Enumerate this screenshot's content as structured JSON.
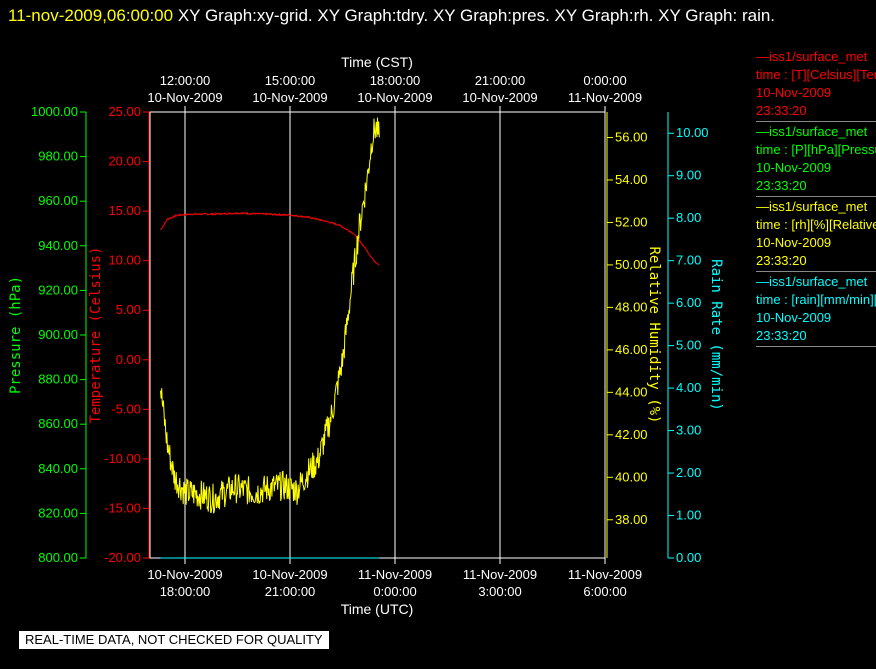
{
  "header": {
    "date_time": "11-nov-2009,06:00:00",
    "graphs": "XY Graph:xy-grid.  XY Graph:tdry.  XY Graph:pres.  XY Graph:rh.  XY Graph: rain."
  },
  "disclaimer": "REAL-TIME DATA, NOT CHECKED FOR QUALITY",
  "legend": [
    {
      "name": "—iss1/surface_met",
      "units": "time : [T][Celsius][Temperature]",
      "date": "10-Nov-2009",
      "time": "23:33:20",
      "color": "#ff0000"
    },
    {
      "name": "—iss1/surface_met",
      "units": "time : [P][hPa][Pressure]",
      "date": "10-Nov-2009",
      "time": "23:33:20",
      "color": "#00ff00"
    },
    {
      "name": "—iss1/surface_met",
      "units": "time : [rh][%][Relative Humidity]",
      "date": "10-Nov-2009",
      "time": "23:33:20",
      "color": "#ffff00"
    },
    {
      "name": "—iss1/surface_met",
      "units": "time : [rain][mm/min][Rain Rate]",
      "date": "10-Nov-2009",
      "time": "23:33:20",
      "color": "#00ffff"
    }
  ],
  "chart_data": {
    "type": "line",
    "x_top_label": "Time (CST)",
    "x_bottom_label": "Time (UTC)",
    "x_range_utc_hours": [
      17,
      30
    ],
    "x_ticks_utc": [
      {
        "h": 18,
        "date": "10-Nov-2009",
        "time": "18:00:00"
      },
      {
        "h": 21,
        "date": "10-Nov-2009",
        "time": "21:00:00"
      },
      {
        "h": 24,
        "date": "11-Nov-2009",
        "time": "0:00:00"
      },
      {
        "h": 27,
        "date": "11-Nov-2009",
        "time": "3:00:00"
      },
      {
        "h": 30,
        "date": "11-Nov-2009",
        "time": "6:00:00"
      }
    ],
    "x_ticks_cst": [
      {
        "h": 18,
        "date": "10-Nov-2009",
        "time": "12:00:00"
      },
      {
        "h": 21,
        "date": "10-Nov-2009",
        "time": "15:00:00"
      },
      {
        "h": 24,
        "date": "10-Nov-2009",
        "time": "18:00:00"
      },
      {
        "h": 27,
        "date": "10-Nov-2009",
        "time": "21:00:00"
      },
      {
        "h": 30,
        "date": "11-Nov-2009",
        "time": "0:00:00"
      }
    ],
    "axes": {
      "pressure": {
        "label": "Pressure (hPa)",
        "color": "#00ff00",
        "range": [
          800,
          1000
        ],
        "ticks": [
          "800.00",
          "820.00",
          "840.00",
          "860.00",
          "880.00",
          "900.00",
          "920.00",
          "940.00",
          "960.00",
          "980.00",
          "1000.00"
        ]
      },
      "temperature": {
        "label": "Temperature (Celsius)",
        "color": "#ff0000",
        "range": [
          -20,
          25
        ],
        "ticks": [
          "-20.00",
          "-15.00",
          "-10.00",
          "-5.00",
          "0.00",
          "5.00",
          "10.00",
          "15.00",
          "20.00",
          "25.00"
        ]
      },
      "rh": {
        "label": "Relative Humidity (%)",
        "color": "#ffff00",
        "range": [
          36.2,
          57.2
        ],
        "ticks": [
          "38.00",
          "40.00",
          "42.00",
          "44.00",
          "46.00",
          "48.00",
          "50.00",
          "52.00",
          "54.00",
          "56.00"
        ]
      },
      "rain": {
        "label": "Rain Rate (mm/min)",
        "color": "#00ffff",
        "range": [
          0,
          10.5
        ],
        "ticks": [
          "0.00",
          "1.00",
          "2.00",
          "3.00",
          "4.00",
          "5.00",
          "6.00",
          "7.00",
          "8.00",
          "9.00",
          "10.00"
        ]
      }
    },
    "series": [
      {
        "name": "Temperature",
        "axis": "temperature",
        "color": "#ff0000",
        "noise": 0.08,
        "x": [
          17.3,
          17.5,
          17.8,
          18.2,
          18.8,
          19.5,
          20.3,
          21.0,
          21.5,
          22.0,
          22.4,
          22.8,
          23.1,
          23.4,
          23.55
        ],
        "y": [
          13.1,
          14.2,
          14.6,
          14.7,
          14.7,
          14.8,
          14.7,
          14.6,
          14.4,
          14.0,
          13.6,
          12.8,
          11.5,
          10.0,
          9.6
        ]
      },
      {
        "name": "Relative Humidity",
        "axis": "rh",
        "color": "#ffff00",
        "noise": 0.7,
        "x": [
          17.3,
          17.5,
          17.7,
          18.0,
          18.4,
          18.8,
          19.4,
          20.0,
          20.4,
          20.8,
          21.2,
          21.5,
          21.8,
          22.2,
          22.5,
          22.8,
          23.0,
          23.2,
          23.35,
          23.45,
          23.55
        ],
        "y": [
          44.2,
          41.5,
          40.0,
          39.3,
          39.2,
          39.0,
          39.5,
          39.3,
          39.5,
          39.6,
          39.4,
          40.2,
          40.8,
          43.0,
          45.5,
          49.5,
          52.0,
          54.0,
          56.0,
          56.5,
          56.0
        ]
      },
      {
        "name": "Rain Rate",
        "axis": "rain",
        "color": "#00ffff",
        "noise": 0,
        "x": [
          17.3,
          23.55
        ],
        "y": [
          0.0,
          0.0
        ]
      }
    ]
  }
}
